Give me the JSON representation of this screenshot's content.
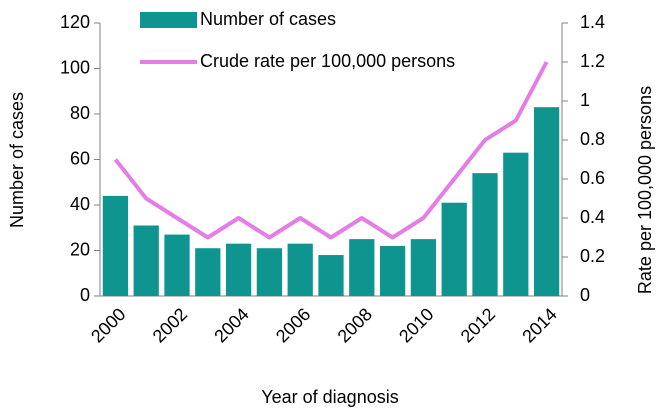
{
  "chart_data": {
    "type": "bar-line",
    "xlabel": "Year of diagnosis",
    "ylabel": "Number of cases",
    "y2label": "Rate per 100,000 persons",
    "categories": [
      "2000",
      null,
      "2002",
      null,
      "2004",
      null,
      "2006",
      null,
      "2008",
      null,
      "2010",
      null,
      "2012",
      null,
      "2014"
    ],
    "series": [
      {
        "name": "Number of cases",
        "type": "bar",
        "color": "#0e958f",
        "axis": "y",
        "values": [
          44,
          31,
          27,
          21,
          23,
          21,
          23,
          18,
          25,
          22,
          25,
          41,
          54,
          63,
          83
        ]
      },
      {
        "name": "Crude rate per 100,000 persons",
        "type": "line",
        "color": "#e47de6",
        "axis": "y2",
        "values": [
          0.7,
          0.5,
          0.4,
          0.3,
          0.4,
          0.3,
          0.4,
          0.3,
          0.4,
          0.3,
          0.4,
          0.6,
          0.8,
          0.9,
          1.2
        ]
      }
    ],
    "ylim": [
      0,
      120
    ],
    "yticks": [
      0,
      20,
      40,
      60,
      80,
      100,
      120
    ],
    "y2lim": [
      0,
      1.4
    ],
    "y2ticks": [
      0,
      0.2,
      0.4,
      0.6,
      0.8,
      1,
      1.2,
      1.4
    ],
    "legend": "top-left",
    "grid": false
  }
}
